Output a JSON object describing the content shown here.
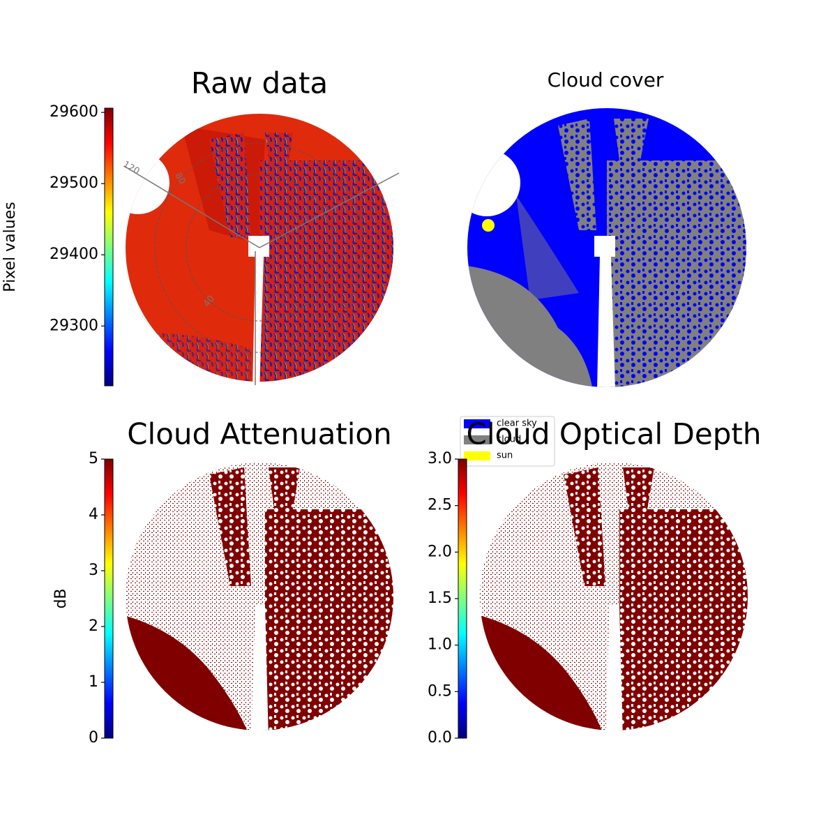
{
  "chart_data": [
    {
      "type": "image",
      "title": "Raw data",
      "annotations": [
        "120",
        "80",
        "40"
      ],
      "colorbar": {
        "label": "Pixel values",
        "colormap": "jet",
        "lim": [
          29216,
          29606
        ],
        "ticks": [
          29300,
          29400,
          29500,
          29600
        ]
      }
    },
    {
      "type": "image",
      "title": "Cloud cover",
      "legend": [
        {
          "name": "clear sky",
          "color": "#0000ff"
        },
        {
          "name": "cloud",
          "color": "#808080"
        },
        {
          "name": "sun",
          "color": "#ffff00"
        }
      ]
    },
    {
      "type": "image",
      "title": "Cloud Attenuation",
      "colorbar": {
        "label": "dB",
        "colormap": "jet",
        "lim": [
          0,
          5
        ],
        "ticks": [
          0,
          1,
          2,
          3,
          4,
          5
        ]
      }
    },
    {
      "type": "image",
      "title": "Cloud Optical Depth",
      "colorbar": {
        "colormap": "jet",
        "lim": [
          0,
          3
        ],
        "ticks": [
          {
            "value": 0,
            "label": "0.0"
          },
          0.5,
          {
            "value": 1,
            "label": "1.0"
          },
          1.5,
          {
            "value": 2,
            "label": "2.0"
          },
          2.5,
          {
            "value": 3,
            "label": "3.0"
          }
        ]
      }
    }
  ]
}
